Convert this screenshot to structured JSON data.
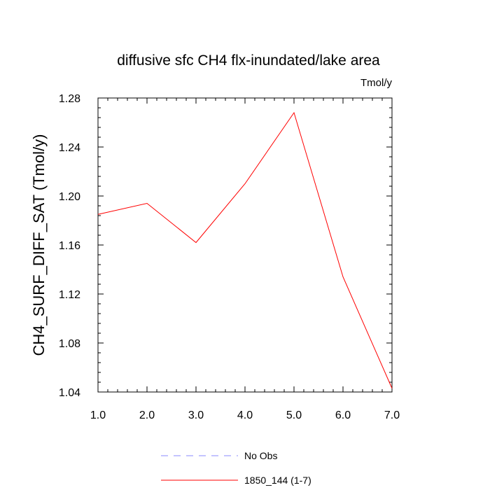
{
  "chart_data": {
    "type": "line",
    "title": "diffusive sfc CH4 flx-inundated/lake area",
    "units": "Tmol/y",
    "xlabel": "",
    "ylabel": "CH4_SURF_DIFF_SAT  (Tmol/y)",
    "xlim": [
      1.0,
      7.0
    ],
    "ylim": [
      1.04,
      1.28
    ],
    "x_ticks": [
      "1.0",
      "2.0",
      "3.0",
      "4.0",
      "5.0",
      "6.0",
      "7.0"
    ],
    "y_ticks": [
      "1.04",
      "1.08",
      "1.12",
      "1.16",
      "1.20",
      "1.24",
      "1.28"
    ],
    "x_tick_values": [
      1,
      2,
      3,
      4,
      5,
      6,
      7
    ],
    "y_tick_values": [
      1.04,
      1.08,
      1.12,
      1.16,
      1.2,
      1.24,
      1.28
    ],
    "grid": false,
    "legend_position": "bottom-center",
    "series": [
      {
        "name": "1850_144 (1-7)",
        "color": "#ff0000",
        "dash": "solid",
        "x": [
          1,
          2,
          3,
          4,
          5,
          6,
          7
        ],
        "y": [
          1.185,
          1.194,
          1.162,
          1.21,
          1.268,
          1.134,
          1.043
        ]
      }
    ],
    "legend": [
      {
        "label": "No Obs",
        "color": "#8a8aff",
        "dash": "dashed"
      },
      {
        "label": "1850_144 (1-7)",
        "color": "#ff0000",
        "dash": "solid"
      }
    ]
  }
}
